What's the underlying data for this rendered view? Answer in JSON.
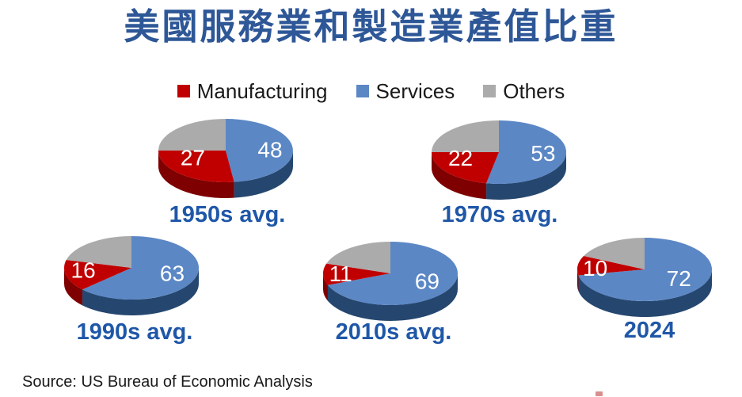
{
  "page": {
    "background": "#FFFFFF"
  },
  "title": {
    "text": "美國服務業和製造業產值比重",
    "color": "#2E5797"
  },
  "legend": {
    "items": [
      {
        "label": "Manufacturing",
        "series": "Manufacturing"
      },
      {
        "label": "Services",
        "series": "Services"
      },
      {
        "label": "Others",
        "series": "Others"
      }
    ]
  },
  "source": {
    "text": "Source: US Bureau of Economic Analysis"
  },
  "chart_data": {
    "type": "pie",
    "title": "美國服務業和製造業產值比重",
    "legend": [
      "Manufacturing",
      "Services",
      "Others"
    ],
    "legend_position": "top",
    "draw_order": [
      "Services",
      "Manufacturing",
      "Others"
    ],
    "start_angle_deg": 0,
    "direction": "clockwise",
    "style": "3d-pie",
    "colors": {
      "Manufacturing": "#C00000",
      "Services": "#5B87C5",
      "Others": "#ABABAB"
    },
    "side_colors": {
      "Manufacturing": "#7E0000",
      "Services": "#25476F",
      "Others": "#6F6F6F"
    },
    "label_color": "#FFFFFF",
    "labeled_series": [
      "Services",
      "Manufacturing"
    ],
    "caption_color": "#1F57A8",
    "pies": [
      {
        "label": "1950s avg.",
        "values": {
          "Manufacturing": 27,
          "Services": 48,
          "Others": 25
        }
      },
      {
        "label": "1970s avg.",
        "values": {
          "Manufacturing": 22,
          "Services": 53,
          "Others": 25
        }
      },
      {
        "label": "1990s avg.",
        "values": {
          "Manufacturing": 16,
          "Services": 63,
          "Others": 21
        }
      },
      {
        "label": "2010s avg.",
        "values": {
          "Manufacturing": 11,
          "Services": 69,
          "Others": 20
        }
      },
      {
        "label": "2024",
        "values": {
          "Manufacturing": 10,
          "Services": 72,
          "Others": 18
        }
      }
    ]
  }
}
